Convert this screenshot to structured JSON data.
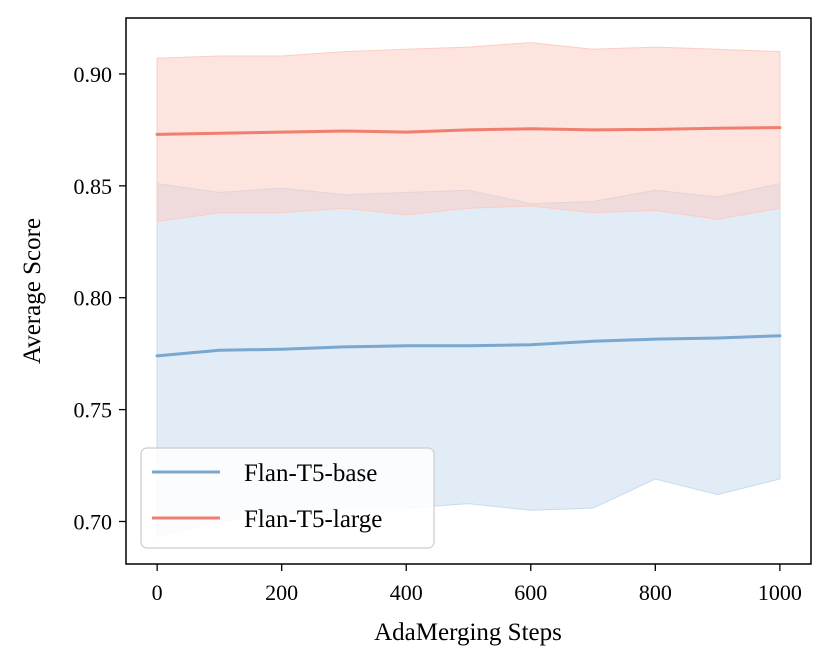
{
  "chart_data": {
    "type": "line",
    "xlabel": "AdaMerging Steps",
    "ylabel": "Average Score",
    "xlim": [
      -50,
      1050
    ],
    "ylim": [
      0.681,
      0.925
    ],
    "xticks": [
      0,
      200,
      400,
      600,
      800,
      1000
    ],
    "xtick_labels": [
      "0",
      "200",
      "400",
      "600",
      "800",
      "1000"
    ],
    "yticks": [
      0.7,
      0.75,
      0.8,
      0.85,
      0.9
    ],
    "ytick_labels": [
      "0.70",
      "0.75",
      "0.80",
      "0.85",
      "0.90"
    ],
    "x": [
      0,
      100,
      200,
      300,
      400,
      500,
      600,
      700,
      800,
      900,
      1000
    ],
    "legend_position": "lower-left",
    "series": [
      {
        "name": "Flan-T5-base",
        "color": "#7aa7cf",
        "band_color": "#c8dcee",
        "values": [
          0.774,
          0.7765,
          0.777,
          0.778,
          0.7785,
          0.7785,
          0.779,
          0.7805,
          0.7815,
          0.782,
          0.783
        ],
        "lower": [
          0.693,
          0.7,
          0.703,
          0.706,
          0.706,
          0.708,
          0.705,
          0.706,
          0.719,
          0.712,
          0.719
        ],
        "upper": [
          0.851,
          0.847,
          0.849,
          0.846,
          0.847,
          0.848,
          0.842,
          0.843,
          0.848,
          0.845,
          0.851
        ]
      },
      {
        "name": "Flan-T5-large",
        "color": "#f07e6e",
        "band_color": "#fbcdc4",
        "values": [
          0.873,
          0.8735,
          0.874,
          0.8745,
          0.874,
          0.875,
          0.8755,
          0.875,
          0.8752,
          0.8757,
          0.876
        ],
        "lower": [
          0.834,
          0.838,
          0.838,
          0.84,
          0.837,
          0.84,
          0.841,
          0.838,
          0.839,
          0.835,
          0.84
        ],
        "upper": [
          0.907,
          0.908,
          0.908,
          0.91,
          0.911,
          0.912,
          0.914,
          0.911,
          0.912,
          0.911,
          0.91
        ]
      }
    ]
  }
}
